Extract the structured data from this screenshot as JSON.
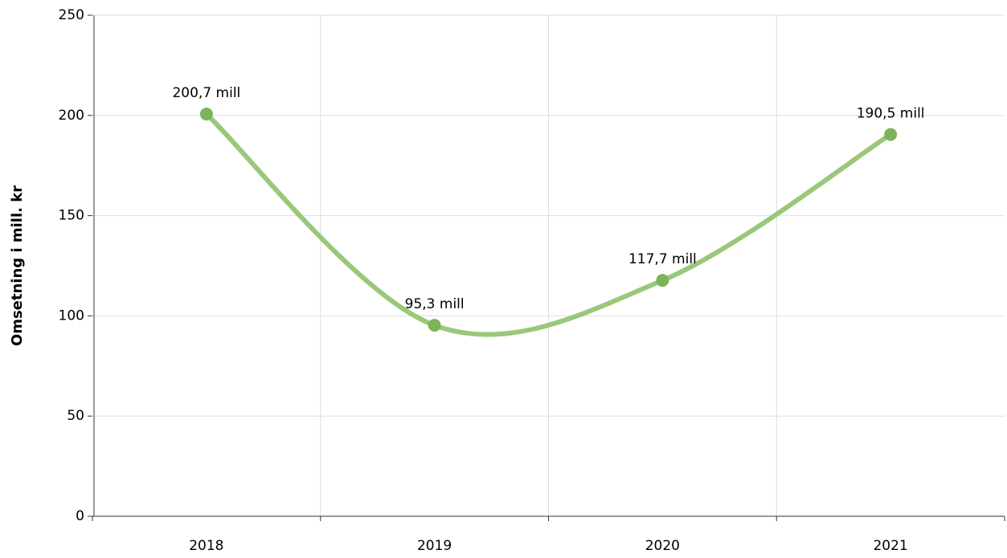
{
  "chart_data": {
    "type": "line",
    "y_axis_label": "Omsetning i mill. kr",
    "categories": [
      "2018",
      "2019",
      "2020",
      "2021"
    ],
    "values": [
      200.7,
      95.3,
      117.7,
      190.5
    ],
    "value_labels": [
      "200,7 mill",
      "95,3 mill",
      "117,7 mill",
      "190,5 mill"
    ],
    "color": "#9ac87a",
    "marker_color": "#7db35a",
    "ylim": [
      0,
      250
    ],
    "yticks": [
      0,
      50,
      100,
      150,
      200,
      250
    ],
    "grid": true,
    "smooth": true
  }
}
